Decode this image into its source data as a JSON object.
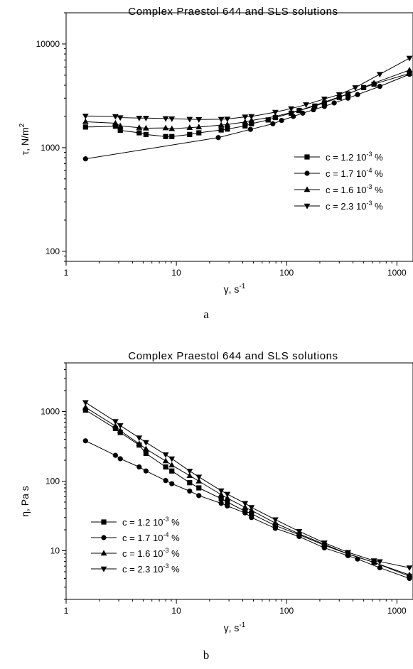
{
  "chart_data": [
    {
      "type": "line",
      "title": "Complex Praestol 644 and SLS solutions",
      "xlabel": "γ, s-1",
      "ylabel": "τ, N/m2",
      "xscale": "log",
      "yscale": "log",
      "xlim": [
        1,
        1400
      ],
      "ylim": [
        80,
        20000
      ],
      "x_ticks": [
        "1",
        "10",
        "100",
        "1000"
      ],
      "y_ticks": [
        "100",
        "1000",
        "10000"
      ],
      "legend_position": "lower-right",
      "caption": "a",
      "series": [
        {
          "name": "c = 1.2 10-3 %",
          "marker": "square",
          "x": [
            1.5,
            2.8,
            3.1,
            4.6,
            5.3,
            8.0,
            9.1,
            13.2,
            16.0,
            25.5,
            29.0,
            42.0,
            48.0,
            68.0,
            79.0,
            110.0,
            130.0,
            180.0,
            220.0,
            300.0,
            360.0,
            500.0,
            620.0,
            1300.0
          ],
          "y": [
            1580,
            1610,
            1470,
            1390,
            1340,
            1280,
            1280,
            1340,
            1390,
            1480,
            1510,
            1620,
            1700,
            1850,
            1950,
            2150,
            2280,
            2520,
            2700,
            3050,
            3300,
            3800,
            4100,
            5200
          ]
        },
        {
          "name": "c = 1.7 10-4 %",
          "marker": "circle",
          "x": [
            1.5,
            24.0,
            47.0,
            75.0,
            90.0,
            115.0,
            140.0,
            175.0,
            220.0,
            270.0,
            360.0,
            440.0,
            700.0,
            1300.0
          ],
          "y": [
            780,
            1250,
            1500,
            1700,
            1830,
            2000,
            2150,
            2320,
            2500,
            2700,
            3000,
            3250,
            3900,
            5100
          ]
        },
        {
          "name": "c = 1.6 10-3 %",
          "marker": "triangle-up",
          "x": [
            1.5,
            2.8,
            3.1,
            4.6,
            5.3,
            8.0,
            9.1,
            13.2,
            16.0,
            25.5,
            29.0,
            42.0,
            48.0,
            79.0,
            130.0,
            220.0,
            360.0,
            620.0,
            1300.0
          ],
          "y": [
            1780,
            1720,
            1620,
            1560,
            1540,
            1550,
            1520,
            1560,
            1580,
            1650,
            1670,
            1770,
            1830,
            2000,
            2280,
            2750,
            3300,
            4200,
            5600
          ]
        },
        {
          "name": "c = 2.3 10-3 %",
          "marker": "triangle-down",
          "x": [
            1.5,
            2.8,
            3.1,
            4.6,
            5.3,
            8.0,
            9.1,
            13.2,
            16.0,
            25.5,
            29.0,
            42.0,
            48.0,
            79.0,
            110.0,
            150.0,
            220.0,
            300.0,
            420.0,
            700.0,
            1300.0
          ],
          "y": [
            2020,
            2000,
            1950,
            1930,
            1930,
            1910,
            1900,
            1880,
            1870,
            1880,
            1890,
            1980,
            2000,
            2200,
            2380,
            2600,
            2950,
            3250,
            3800,
            5100,
            7300
          ]
        }
      ]
    },
    {
      "type": "line",
      "title": "Complex Praestol 644 and SLS solutions",
      "xlabel": "γ, s-1",
      "ylabel": "η, Pa s",
      "xscale": "log",
      "yscale": "log",
      "xlim": [
        1,
        1400
      ],
      "ylim": [
        2,
        5000
      ],
      "x_ticks": [
        "1",
        "10",
        "100",
        "1000"
      ],
      "y_ticks": [
        "10",
        "100",
        "1000"
      ],
      "legend_position": "lower-left",
      "caption": "b",
      "series": [
        {
          "name": "c = 1.2 10-3 %",
          "marker": "square",
          "x": [
            1.5,
            2.8,
            3.1,
            4.6,
            5.3,
            8.0,
            9.1,
            13.2,
            16.0,
            25.5,
            29.0,
            42.0,
            48.0,
            79.0,
            130.0,
            220.0,
            360.0,
            620.0,
            1300.0
          ],
          "y": [
            1050,
            570,
            500,
            330,
            250,
            160,
            140,
            95,
            80,
            56,
            50,
            37,
            34,
            23,
            17,
            12,
            9,
            6.8,
            4.3
          ]
        },
        {
          "name": "c = 1.7 10-4 %",
          "marker": "circle",
          "x": [
            1.5,
            2.8,
            3.1,
            4.6,
            5.3,
            8.0,
            9.1,
            13.2,
            16.0,
            25.5,
            29.0,
            42.0,
            48.0,
            79.0,
            130.0,
            220.0,
            360.0,
            440.0,
            700.0,
            1300.0
          ],
          "y": [
            380,
            235,
            210,
            160,
            140,
            102,
            92,
            72,
            62,
            48,
            44,
            35,
            30,
            21,
            16,
            11,
            8.5,
            7.6,
            5.7,
            4.0
          ]
        },
        {
          "name": "c = 1.6 10-3 %",
          "marker": "triangle-up",
          "x": [
            1.5,
            2.8,
            3.1,
            4.6,
            5.3,
            8.0,
            9.1,
            13.2,
            16.0,
            25.5,
            29.0,
            42.0,
            48.0,
            79.0,
            130.0,
            220.0,
            360.0,
            620.0,
            1300.0
          ],
          "y": [
            1150,
            620,
            530,
            345,
            290,
            195,
            170,
            120,
            100,
            64,
            57,
            42,
            38,
            25,
            17.5,
            12.4,
            9,
            6.8,
            4.5
          ]
        },
        {
          "name": "c = 2.3 10-3 %",
          "marker": "triangle-down",
          "x": [
            1.5,
            2.8,
            3.1,
            4.6,
            5.3,
            8.0,
            9.1,
            13.2,
            16.0,
            25.5,
            29.0,
            42.0,
            48.0,
            79.0,
            130.0,
            220.0,
            360.0,
            620.0,
            700.0,
            1300.0
          ],
          "y": [
            1350,
            720,
            630,
            420,
            360,
            240,
            210,
            140,
            115,
            73,
            65,
            48,
            42,
            28,
            19,
            13,
            9.5,
            7.2,
            7.0,
            5.7
          ]
        }
      ]
    }
  ]
}
